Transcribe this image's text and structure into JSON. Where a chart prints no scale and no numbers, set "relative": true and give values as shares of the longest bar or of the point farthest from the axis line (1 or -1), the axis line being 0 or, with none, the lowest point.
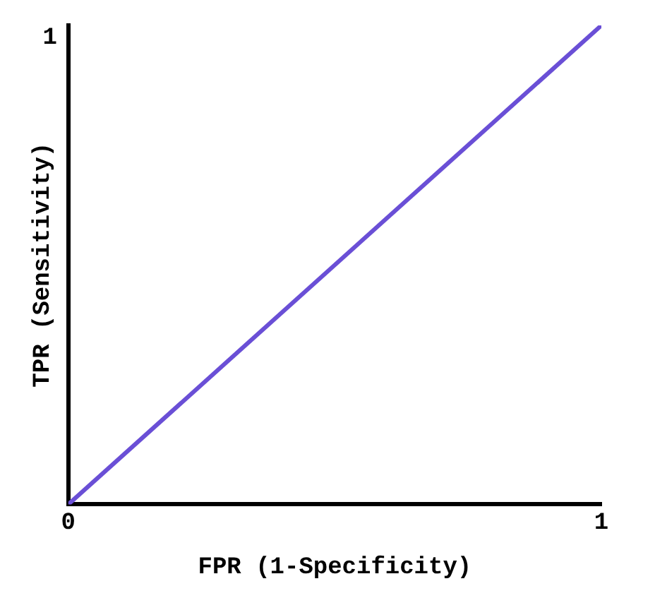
{
  "chart_data": {
    "type": "line",
    "xlabel": "FPR (1-Specificity)",
    "ylabel": "TPR (Sensitivity)",
    "x": [
      0,
      1
    ],
    "series": [
      {
        "color": "#6a4fd6",
        "values": [
          0,
          1
        ]
      }
    ],
    "xlim": [
      0,
      1
    ],
    "xticks": [
      0,
      1
    ],
    "relative": true,
    "annotations": [
      "1"
    ],
    "grid": false,
    "legend": false,
    "marker": "none",
    "line_style": "solid"
  }
}
